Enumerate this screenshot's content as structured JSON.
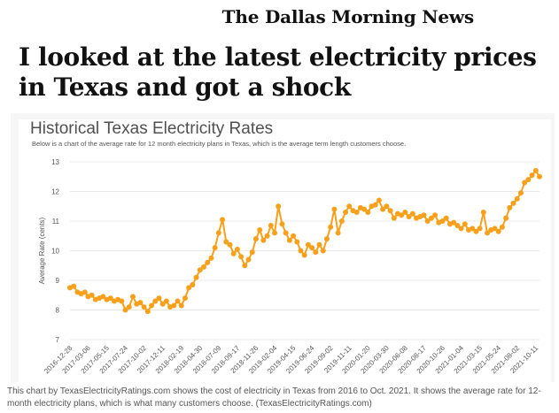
{
  "masthead": "The Dallas Morning News",
  "headline": "I looked at the latest electricity prices in Texas and got a shock",
  "caption": "This chart by TexasElectricityRatings.com shows the cost of electricity in Texas from 2016 to Oct. 2021. It shows the average rate for 12-month electricity plans, which is what many customers choose. (TexasElectricityRatings.com)",
  "colors": {
    "series": "#f7a01b",
    "grid": "#e8e8e8",
    "text": "#555555",
    "background": "#ffffff"
  },
  "chart_data": {
    "type": "line",
    "title": "Historical Texas Electricity Rates",
    "subtitle": "Below is a chart of the average rate for 12 month electricity plans in Texas, which is the average term length customers choose.",
    "xlabel": "",
    "ylabel": "Average Rate (cents)",
    "ylim": [
      7,
      13
    ],
    "yticks": [
      7,
      8,
      9,
      10,
      11,
      12,
      13
    ],
    "grid": true,
    "x_tick_labels": [
      "2016-12-28",
      "2017-03-06",
      "2017-05-15",
      "2017-07-24",
      "2017-10-02",
      "2017-12-11",
      "2018-02-19",
      "2018-04-30",
      "2018-07-09",
      "2018-09-17",
      "2018-11-26",
      "2019-02-04",
      "2019-04-15",
      "2019-06-24",
      "2019-09-02",
      "2019-11-11",
      "2020-01-20",
      "2020-03-30",
      "2020-06-08",
      "2020-08-17",
      "2020-10-26",
      "2021-01-04",
      "2021-03-15",
      "2021-05-24",
      "2021-08-02",
      "2021-10-11"
    ],
    "x": [
      "2016-12-28",
      "2017-01-11",
      "2017-01-25",
      "2017-02-08",
      "2017-02-22",
      "2017-03-06",
      "2017-03-20",
      "2017-04-03",
      "2017-04-17",
      "2017-05-01",
      "2017-05-15",
      "2017-05-29",
      "2017-06-12",
      "2017-06-26",
      "2017-07-10",
      "2017-07-24",
      "2017-08-07",
      "2017-08-21",
      "2017-09-04",
      "2017-09-18",
      "2017-10-02",
      "2017-10-16",
      "2017-10-30",
      "2017-11-13",
      "2017-11-27",
      "2017-12-11",
      "2017-12-25",
      "2018-01-08",
      "2018-01-22",
      "2018-02-05",
      "2018-02-19",
      "2018-03-05",
      "2018-03-19",
      "2018-04-02",
      "2018-04-16",
      "2018-04-30",
      "2018-05-14",
      "2018-05-28",
      "2018-06-11",
      "2018-06-25",
      "2018-07-09",
      "2018-07-23",
      "2018-08-06",
      "2018-08-20",
      "2018-09-03",
      "2018-09-17",
      "2018-10-01",
      "2018-10-15",
      "2018-10-29",
      "2018-11-12",
      "2018-11-26",
      "2018-12-10",
      "2018-12-24",
      "2019-01-07",
      "2019-01-21",
      "2019-02-04",
      "2019-02-18",
      "2019-03-04",
      "2019-03-18",
      "2019-04-01",
      "2019-04-15",
      "2019-04-29",
      "2019-05-13",
      "2019-05-27",
      "2019-06-10",
      "2019-06-24",
      "2019-07-08",
      "2019-07-22",
      "2019-08-05",
      "2019-08-19",
      "2019-09-02",
      "2019-09-16",
      "2019-09-30",
      "2019-10-14",
      "2019-10-28",
      "2019-11-11",
      "2019-11-25",
      "2019-12-09",
      "2019-12-23",
      "2020-01-06",
      "2020-01-20",
      "2020-02-03",
      "2020-02-17",
      "2020-03-02",
      "2020-03-16",
      "2020-03-30",
      "2020-04-13",
      "2020-04-27",
      "2020-05-11",
      "2020-05-25",
      "2020-06-08",
      "2020-06-22",
      "2020-07-06",
      "2020-07-20",
      "2020-08-03",
      "2020-08-17",
      "2020-08-31",
      "2020-09-14",
      "2020-09-28",
      "2020-10-12",
      "2020-10-26",
      "2020-11-09",
      "2020-11-23",
      "2020-12-07",
      "2020-12-21",
      "2021-01-04",
      "2021-01-18",
      "2021-02-01",
      "2021-02-15",
      "2021-03-01",
      "2021-03-15",
      "2021-03-29",
      "2021-04-12",
      "2021-04-26",
      "2021-05-10",
      "2021-05-24",
      "2021-06-07",
      "2021-06-21",
      "2021-07-05",
      "2021-07-19",
      "2021-08-02",
      "2021-08-16",
      "2021-08-30",
      "2021-09-13",
      "2021-09-27",
      "2021-10-11",
      "2021-10-25"
    ],
    "series": [
      {
        "values": [
          8.75,
          8.8,
          8.6,
          8.55,
          8.6,
          8.45,
          8.5,
          8.35,
          8.4,
          8.45,
          8.35,
          8.4,
          8.3,
          8.35,
          8.3,
          8.0,
          8.1,
          8.45,
          8.2,
          8.25,
          8.1,
          7.95,
          8.15,
          8.3,
          8.4,
          8.2,
          8.3,
          8.1,
          8.15,
          8.3,
          8.15,
          8.4,
          8.75,
          8.85,
          9.1,
          9.35,
          9.45,
          9.6,
          9.75,
          10.1,
          10.6,
          11.05,
          10.3,
          10.2,
          9.9,
          10.05,
          9.8,
          9.5,
          9.7,
          9.95,
          10.4,
          10.7,
          10.35,
          10.5,
          10.85,
          10.6,
          11.5,
          10.9,
          10.6,
          10.35,
          10.5,
          10.3,
          10.0,
          9.85,
          10.2,
          10.1,
          9.95,
          10.2,
          10.0,
          10.4,
          10.8,
          11.4,
          10.6,
          11.0,
          11.3,
          11.5,
          11.35,
          11.3,
          11.45,
          11.4,
          11.3,
          11.5,
          11.55,
          11.7,
          11.4,
          11.5,
          11.35,
          11.1,
          11.25,
          11.2,
          11.3,
          11.15,
          11.25,
          11.1,
          11.15,
          11.2,
          11.0,
          11.1,
          11.2,
          10.95,
          11.0,
          11.1,
          10.9,
          10.95,
          10.85,
          10.75,
          10.9,
          10.7,
          10.75,
          10.65,
          10.75,
          11.3,
          10.6,
          10.7,
          10.75,
          10.65,
          10.8,
          11.1,
          11.45,
          11.6,
          11.75,
          11.95,
          12.3,
          12.4,
          12.55,
          12.7,
          12.5
        ]
      }
    ]
  }
}
